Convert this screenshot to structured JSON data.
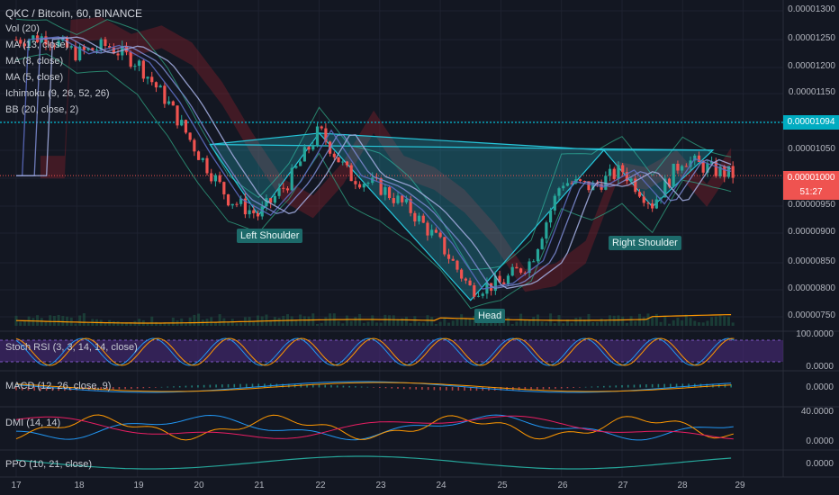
{
  "header": {
    "symbol": "QKC / Bitcoin, 60, BINANCE"
  },
  "indicators": [
    "Vol (20)",
    "MA (13, close)",
    "MA (8, close)",
    "MA (5, close)",
    "Ichimoku (9, 26, 52, 26)",
    "BB (20, close, 2)"
  ],
  "annotations": {
    "left": "Left Shoulder",
    "head": "Head",
    "right": "Right Shoulder"
  },
  "price_axis": {
    "ticks": [
      "0.00001300",
      "0.00001250",
      "0.00001200",
      "0.00001150",
      "0.00001100",
      "0.00001050",
      "0.00001000",
      "0.00000950",
      "0.00000900",
      "0.00000850",
      "0.00000800",
      "0.00000750"
    ],
    "current_price": "0.00001000",
    "countdown": "51:27",
    "alert_price": "0.00001094"
  },
  "panels": [
    {
      "label": "Stoch RSI (3, 3, 14, 14, close)",
      "ticks": [
        "100.0000",
        "0.0000"
      ]
    },
    {
      "label": "MACD (12, 26, close, 9)",
      "ticks": [
        "0.0000"
      ]
    },
    {
      "label": "DMI (14, 14)",
      "ticks": [
        "40.0000",
        "0.0000"
      ]
    },
    {
      "label": "PPO (10, 21, close)",
      "ticks": [
        "0.0000"
      ]
    }
  ],
  "date_axis": [
    "17",
    "18",
    "19",
    "20",
    "21",
    "22",
    "23",
    "24",
    "25",
    "26",
    "27",
    "28",
    "29"
  ],
  "colors": {
    "background": "#131722",
    "up": "#26a69a",
    "down": "#ef5350",
    "pattern": "#26c6da",
    "alert": "#00bcd4",
    "current": "#ef5350",
    "volume_ma": "#ff9800",
    "stoch_fill": "#4a2a7a"
  },
  "chart_data": {
    "type": "line",
    "title": "QKC / Bitcoin, 60, BINANCE",
    "x": [
      "17",
      "17.5",
      "18",
      "18.5",
      "19",
      "19.5",
      "20",
      "20.5",
      "21",
      "21.5",
      "22",
      "22.5",
      "23",
      "23.5",
      "24",
      "24.5",
      "25",
      "25.5",
      "26",
      "26.5",
      "27",
      "27.5",
      "28",
      "28.5",
      "28.9"
    ],
    "series": [
      {
        "values": [
          1.24e-05,
          1.245e-05,
          1.215e-05,
          1.23e-05,
          1.2e-05,
          1.13e-05,
          1.04e-05,
          9.6e-06,
          9.3e-06,
          9.9e-06,
          1.08e-05,
          1e-05,
          9.8e-06,
          9.4e-06,
          8.8e-06,
          8e-06,
          8.1e-06,
          8.5e-06,
          9.9e-06,
          9.8e-06,
          1.01e-05,
          9.5e-06,
          1.03e-05,
          1.01e-05,
          1e-05
        ]
      }
    ],
    "ylim": [
      7.3e-06,
      1.31e-05
    ],
    "ticks": [
      "0.00001300",
      "0.00001250",
      "0.00001200",
      "0.00001150",
      "0.00001100",
      "0.00001050",
      "0.00001000",
      "0.00000950",
      "0.00000900",
      "0.00000850",
      "0.00000800",
      "0.00000750"
    ],
    "pattern_points": [
      {
        "name": "left_shoulder",
        "x": "21",
        "y": 9.3e-06
      },
      {
        "name": "head",
        "x": "24.5",
        "y": 7.8e-06
      },
      {
        "name": "right_shoulder",
        "x": "27.5",
        "y": 9.45e-06
      }
    ],
    "neckline": [
      1.045e-05,
      1.045e-05
    ],
    "horizontal_lines": [
      1.094e-05,
      1e-05
    ]
  }
}
